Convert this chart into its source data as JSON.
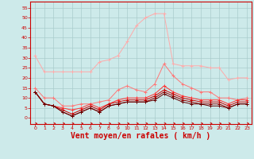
{
  "background_color": "#cdeaea",
  "grid_color": "#aacccc",
  "xlabel": "Vent moyen/en rafales ( km/h )",
  "xlabel_color": "#cc0000",
  "xlabel_fontsize": 7,
  "xticks": [
    0,
    1,
    2,
    3,
    4,
    5,
    6,
    7,
    8,
    9,
    10,
    11,
    12,
    13,
    14,
    15,
    16,
    17,
    18,
    19,
    20,
    21,
    22,
    23
  ],
  "yticks": [
    0,
    5,
    10,
    15,
    20,
    25,
    30,
    35,
    40,
    45,
    50,
    55
  ],
  "ylim": [
    -3,
    58
  ],
  "xlim": [
    -0.5,
    23.5
  ],
  "series": [
    {
      "color": "#ffaaaa",
      "data": [
        31,
        23,
        23,
        23,
        23,
        23,
        23,
        28,
        29,
        31,
        38,
        46,
        50,
        52,
        52,
        27,
        26,
        26,
        26,
        25,
        25,
        19,
        20,
        20
      ]
    },
    {
      "color": "#ff7777",
      "data": [
        15,
        10,
        10,
        6,
        6,
        7,
        7,
        8,
        9,
        14,
        16,
        14,
        13,
        17,
        27,
        21,
        17,
        15,
        13,
        13,
        10,
        10,
        9,
        10
      ]
    },
    {
      "color": "#ff3333",
      "data": [
        13,
        7,
        6,
        5,
        4,
        5,
        7,
        5,
        7,
        9,
        10,
        10,
        10,
        12,
        16,
        13,
        11,
        10,
        9,
        9,
        9,
        7,
        9,
        9
      ]
    },
    {
      "color": "#cc0000",
      "data": [
        13,
        7,
        6,
        4,
        2,
        4,
        6,
        4,
        7,
        8,
        9,
        9,
        9,
        11,
        14,
        12,
        10,
        9,
        8,
        8,
        8,
        6,
        8,
        8
      ]
    },
    {
      "color": "#990000",
      "data": [
        13,
        7,
        6,
        3,
        1,
        3,
        5,
        3,
        6,
        7,
        8,
        8,
        8,
        10,
        13,
        11,
        9,
        8,
        7,
        7,
        7,
        5,
        7,
        7
      ]
    },
    {
      "color": "#660000",
      "data": [
        13,
        7,
        6,
        3,
        1,
        3,
        5,
        3,
        6,
        7,
        8,
        8,
        8,
        9,
        12,
        10,
        8,
        7,
        7,
        6,
        6,
        5,
        7,
        7
      ]
    }
  ]
}
